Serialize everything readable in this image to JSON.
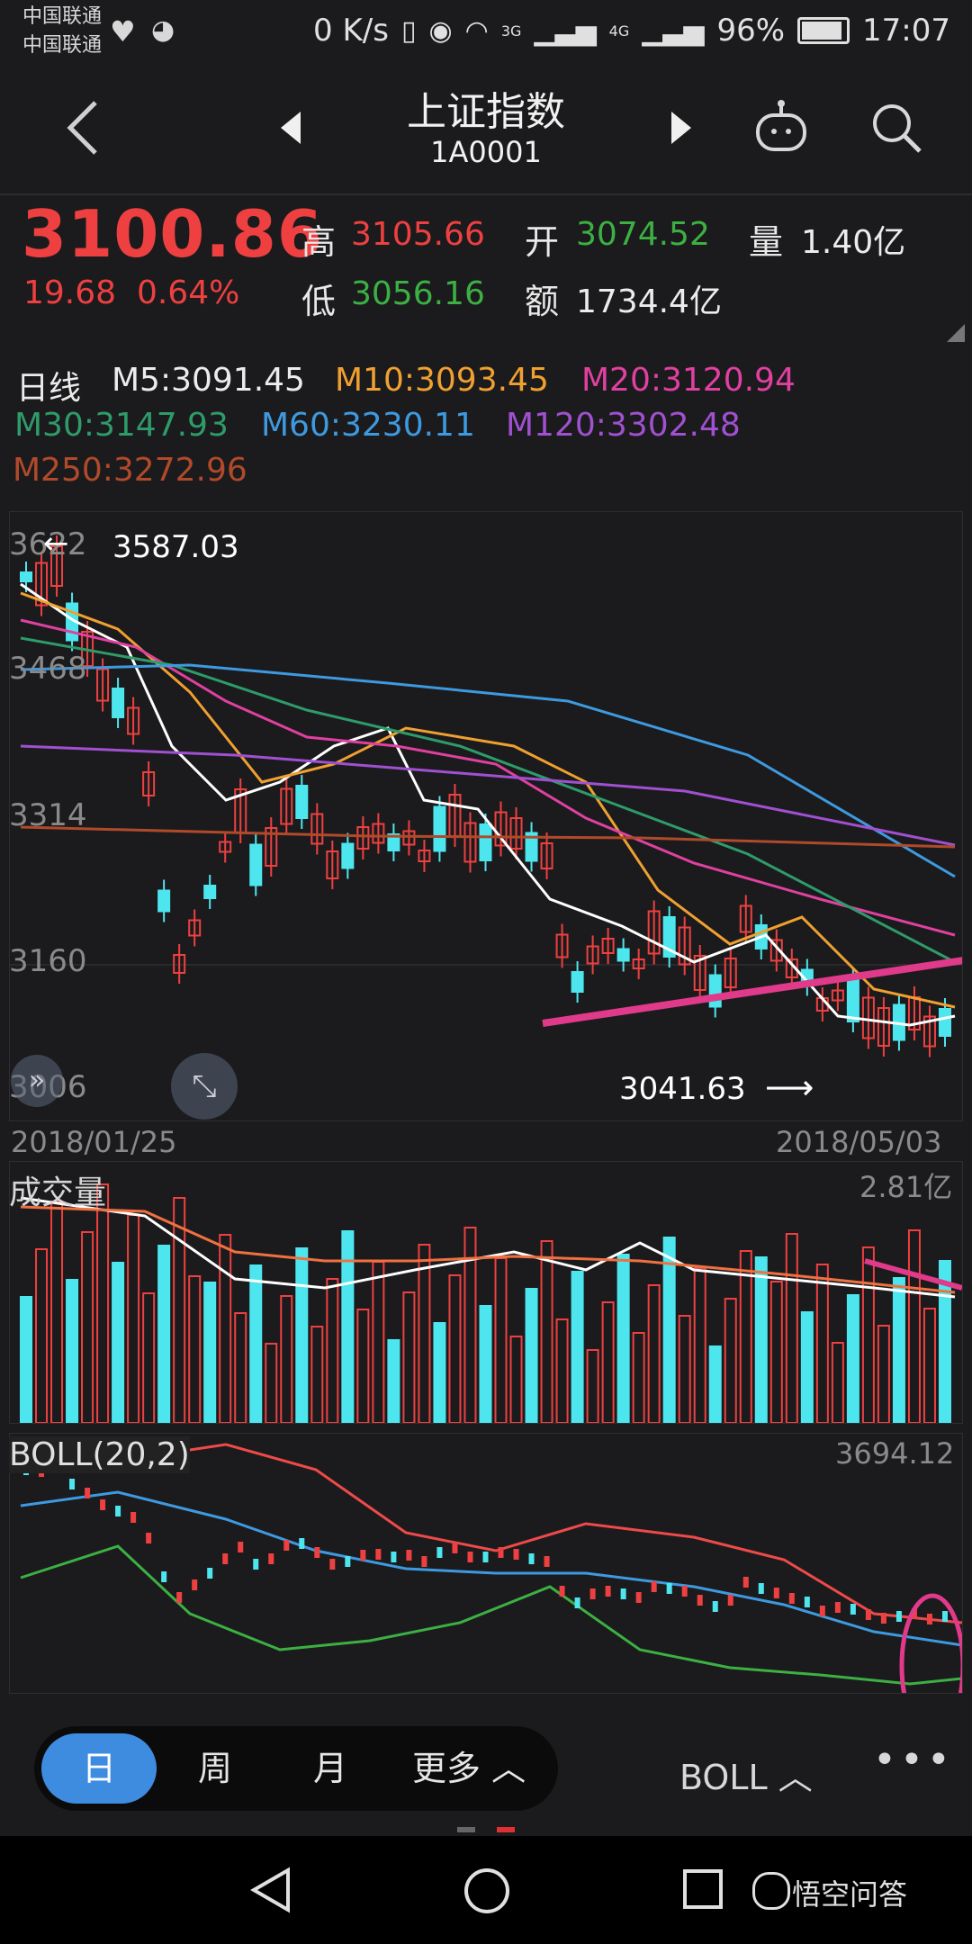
{
  "status_bar": {
    "carrier_1": "中国联通",
    "carrier_2": "中国联通",
    "speed": "0 K/s",
    "network_1": "3G",
    "network_2": "4G",
    "battery": "96%",
    "time": "17:07"
  },
  "header": {
    "title": "上证指数",
    "code": "1A0001",
    "icons": [
      "back-icon",
      "prev-icon",
      "next-icon",
      "robot-icon",
      "search-icon"
    ]
  },
  "quote": {
    "price": "3100.86",
    "change": "19.68",
    "change_pct": "0.64%",
    "high_label": "高",
    "high": "3105.66",
    "open_label": "开",
    "open": "3074.52",
    "volume_label": "量",
    "volume": "1.40亿",
    "low_label": "低",
    "low": "3056.16",
    "amount_label": "额",
    "amount": "1734.4亿",
    "colors": {
      "up": "#ee4040",
      "down": "#3cb043"
    }
  },
  "ma_legend": {
    "period": "日线",
    "m5": "M5:3091.45",
    "m10": "M10:3093.45",
    "m20": "M20:3120.94",
    "m30": "M30:3147.93",
    "m60": "M60:3230.11",
    "m120": "M120:3302.48",
    "m250": "M250:3272.96"
  },
  "kline": {
    "y_ticks": [
      "3622",
      "3468",
      "3314",
      "3160",
      "3006"
    ],
    "max_label": "3587.03",
    "min_label": "3041.63",
    "start_date": "2018/01/25",
    "end_date": "2018/05/03"
  },
  "volume_panel": {
    "title": "成交量",
    "max": "2.81亿"
  },
  "boll_panel": {
    "title": "BOLL(20,2)",
    "max": "3694.12"
  },
  "tabs": {
    "day": "日",
    "week": "周",
    "month": "月",
    "more": "更多",
    "indicator": "BOLL"
  },
  "watermark": "悟空问答"
}
